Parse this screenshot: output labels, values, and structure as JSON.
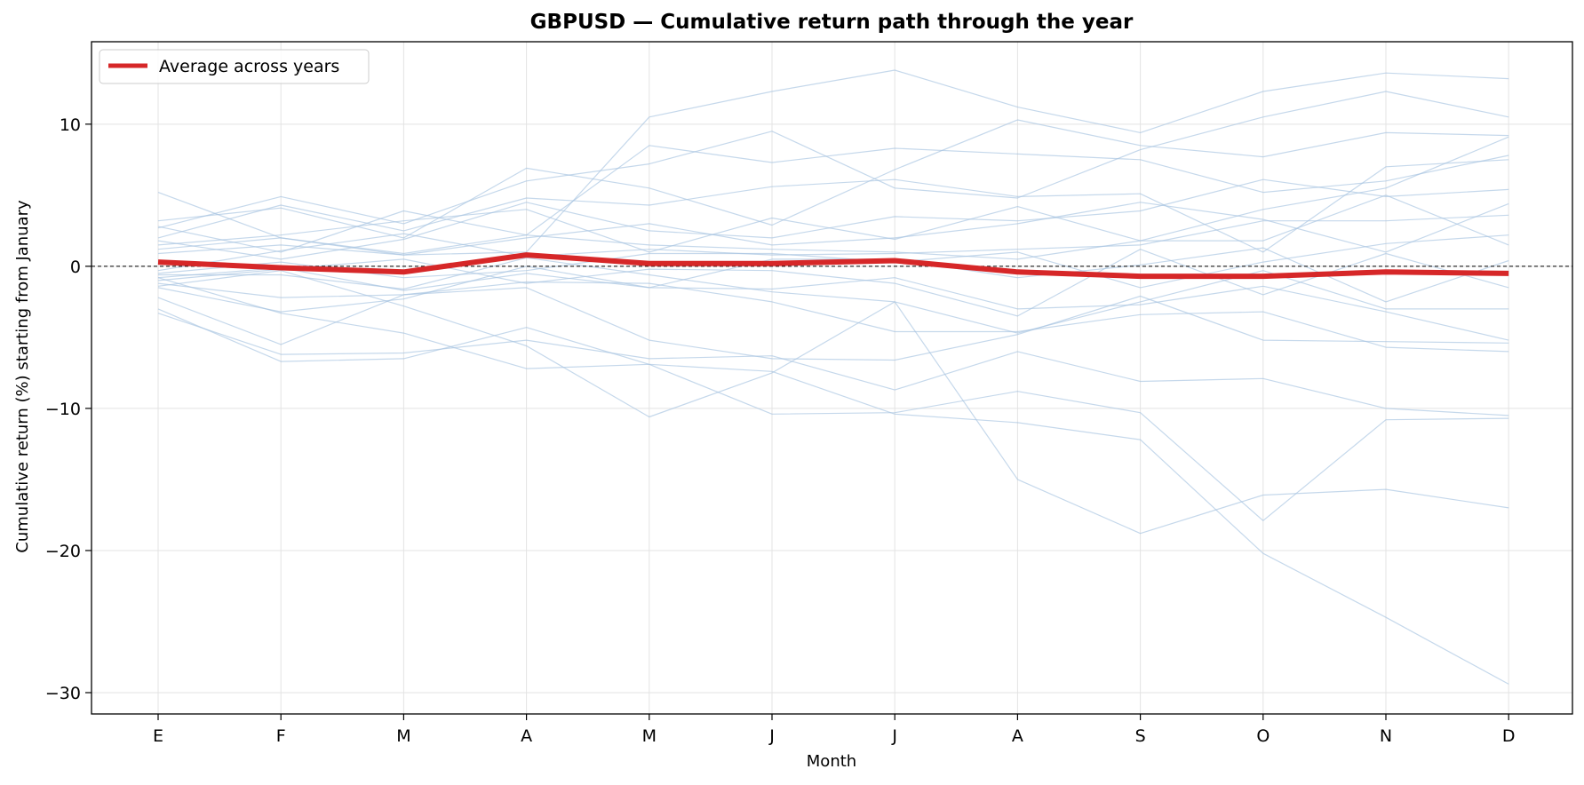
{
  "chart_data": {
    "type": "line",
    "title": "GBPUSD — Cumulative return path through the year",
    "xlabel": "Month",
    "ylabel": "Cumulative return (%) starting from January",
    "categories": [
      "E",
      "F",
      "M",
      "A",
      "M",
      "J",
      "J",
      "A",
      "S",
      "O",
      "N",
      "D"
    ],
    "ylim": [
      -31.5,
      15.8
    ],
    "yticks": [
      10,
      0,
      -10,
      -20,
      -30
    ],
    "ytick_labels": [
      "10",
      "0",
      "−10",
      "−20",
      "−30"
    ],
    "grid": true,
    "reference_line": 0,
    "legend": {
      "placement": "top-left",
      "entries": [
        "Average across years"
      ]
    },
    "colors": {
      "average": "#d62728",
      "years": "#a6c3e0",
      "reference": "#000000",
      "grid": "#e3e3e3"
    },
    "series": [
      {
        "name": "Average across years",
        "role": "average",
        "values": [
          0.3,
          -0.1,
          -0.4,
          0.8,
          0.2,
          0.2,
          0.4,
          -0.4,
          -0.7,
          -0.7,
          -0.4,
          -0.5
        ]
      },
      {
        "role": "year",
        "values": [
          5.2,
          2.0,
          0.8,
          1.0,
          10.5,
          12.3,
          13.8,
          11.2,
          9.4,
          12.3,
          13.6,
          13.2
        ]
      },
      {
        "role": "year",
        "values": [
          2.7,
          4.9,
          3.0,
          6.0,
          7.2,
          9.5,
          5.5,
          4.8,
          8.2,
          10.5,
          12.3,
          10.5
        ]
      },
      {
        "role": "year",
        "values": [
          3.2,
          4.1,
          2.0,
          6.9,
          5.5,
          2.9,
          6.8,
          10.3,
          8.5,
          7.7,
          9.4,
          9.2
        ]
      },
      {
        "role": "year",
        "values": [
          2.8,
          1.0,
          3.9,
          2.2,
          8.5,
          7.3,
          8.3,
          7.9,
          7.5,
          5.2,
          6.0,
          7.8
        ]
      },
      {
        "role": "year",
        "values": [
          2.0,
          4.3,
          2.5,
          4.8,
          4.3,
          5.6,
          6.1,
          4.9,
          5.1,
          1.0,
          7.0,
          7.5
        ]
      },
      {
        "role": "year",
        "values": [
          1.5,
          2.2,
          3.2,
          4.0,
          1.0,
          3.4,
          1.9,
          4.2,
          1.8,
          4.0,
          5.5,
          9.1
        ]
      },
      {
        "role": "year",
        "values": [
          1.8,
          0.5,
          1.9,
          4.5,
          2.5,
          2.0,
          3.5,
          3.2,
          3.9,
          6.1,
          4.9,
          5.4
        ]
      },
      {
        "role": "year",
        "values": [
          1.2,
          2.0,
          0.9,
          2.2,
          1.5,
          1.2,
          1.0,
          0.5,
          1.8,
          1.8,
          5.0,
          1.5
        ]
      },
      {
        "role": "year",
        "values": [
          0.9,
          1.5,
          0.8,
          2.0,
          3.0,
          1.5,
          2.0,
          3.0,
          4.5,
          3.3,
          1.0,
          4.4
        ]
      },
      {
        "role": "year",
        "values": [
          -0.3,
          1.1,
          2.3,
          0.7,
          1.2,
          0.8,
          0.9,
          1.2,
          1.5,
          3.2,
          3.2,
          3.6
        ]
      },
      {
        "role": "year",
        "values": [
          -0.5,
          0.3,
          -0.8,
          -0.3,
          0.9,
          0.9,
          0.3,
          1.0,
          -1.5,
          0.3,
          1.6,
          2.2
        ]
      },
      {
        "role": "year",
        "values": [
          -0.8,
          -0.1,
          -1.7,
          -0.5,
          -1.5,
          0.5,
          0.5,
          -0.8,
          0.1,
          1.3,
          -2.5,
          0.4
        ]
      },
      {
        "role": "year",
        "values": [
          -1.0,
          -0.2,
          0.5,
          -1.2,
          -0.2,
          -0.3,
          -1.2,
          -3.5,
          1.2,
          -2.0,
          0.9,
          -1.5
        ]
      },
      {
        "role": "year",
        "values": [
          -0.6,
          -0.6,
          -1.6,
          0.6,
          -0.6,
          -1.8,
          -2.5,
          -4.7,
          -2.5,
          -0.3,
          -3.0,
          -3.0
        ]
      },
      {
        "role": "year",
        "values": [
          -1.5,
          -3.2,
          -2.3,
          0.0,
          -1.5,
          -1.6,
          -0.8,
          -3.0,
          -2.7,
          -1.4,
          -3.2,
          -5.2
        ]
      },
      {
        "role": "year",
        "values": [
          -2.2,
          -5.5,
          -2.0,
          -1.1,
          -1.2,
          -2.5,
          -4.6,
          -4.6,
          -3.4,
          -3.2,
          -5.7,
          -6.0
        ]
      },
      {
        "role": "year",
        "values": [
          -1.2,
          -2.2,
          -2.0,
          -1.5,
          -5.2,
          -6.5,
          -6.6,
          -4.8,
          -2.1,
          -5.2,
          -5.3,
          -5.4
        ]
      },
      {
        "role": "year",
        "values": [
          -3.3,
          -6.2,
          -6.1,
          -5.2,
          -6.5,
          -6.3,
          -8.7,
          -6.0,
          -8.1,
          -7.9,
          -10.0,
          -10.5
        ]
      },
      {
        "role": "year",
        "values": [
          -3.0,
          -6.7,
          -6.5,
          -4.3,
          -6.9,
          -10.4,
          -10.3,
          -8.8,
          -10.3,
          -17.9,
          -10.8,
          -10.7
        ]
      },
      {
        "role": "year",
        "values": [
          -0.8,
          -3.3,
          -4.7,
          -7.2,
          -6.9,
          -7.4,
          -10.4,
          -11.0,
          -12.2,
          -20.2,
          -24.7,
          -29.4
        ]
      },
      {
        "role": "year",
        "values": [
          -1.4,
          -0.3,
          -2.8,
          -5.6,
          -10.6,
          -7.5,
          -2.5,
          -15.0,
          -18.8,
          -16.1,
          -15.7,
          -17.0
        ]
      }
    ]
  }
}
